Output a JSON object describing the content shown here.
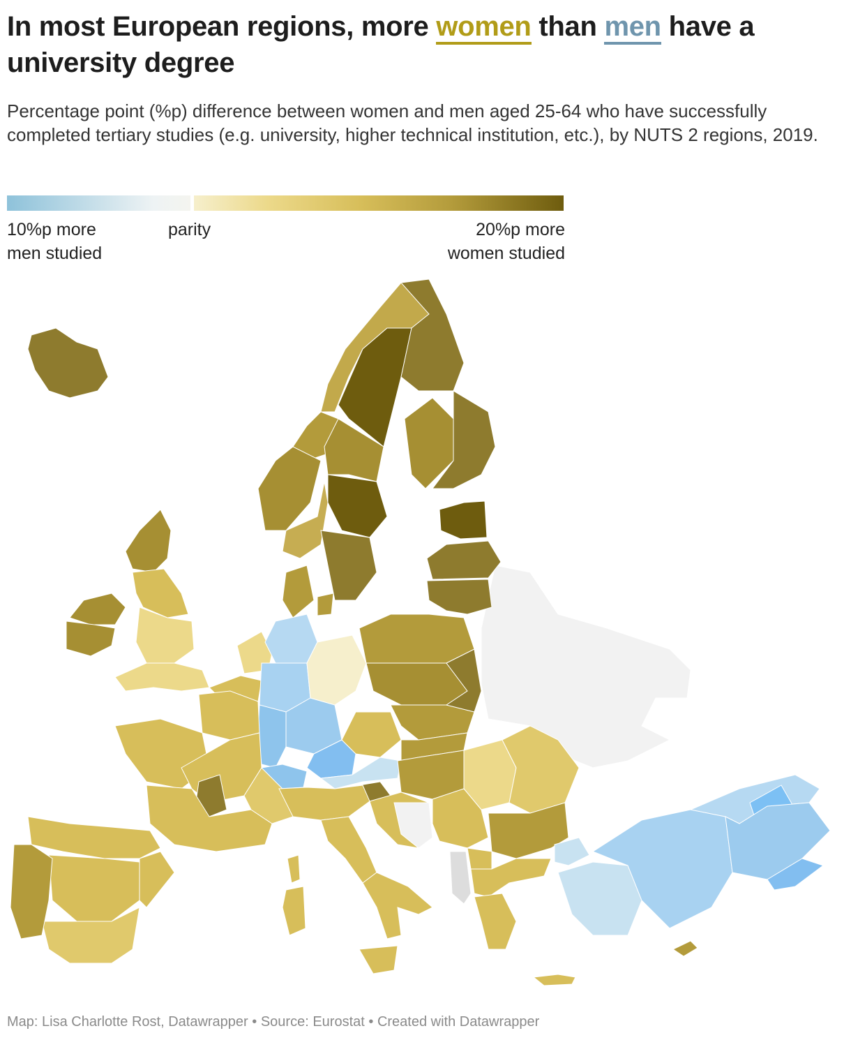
{
  "header": {
    "title_part1": "In most European regions, more ",
    "title_women": "women",
    "title_part2": " than ",
    "title_men": "men",
    "title_part3": " have a university degree",
    "subtitle": "Percentage point (%p) difference between women and men aged 25-64 who have successfully completed tertiary studies (e.g. university, higher technical institution, etc.), by NUTS 2 regions, 2019."
  },
  "legend": {
    "left_label_line1": "10%p more",
    "left_label_line2": "men studied",
    "mid_label": "parity",
    "right_label_line1": "20%p more",
    "right_label_line2": "women studied",
    "scale": {
      "min": -10,
      "max": 20,
      "men_color": "#8ec2da",
      "parity_color": "#f4f4ef",
      "women_color": "#6e5c0e"
    }
  },
  "colors": {
    "women_highlight": "#b19c18",
    "men_highlight": "#6f95ad",
    "no_data": "#f2f2f2"
  },
  "footer": {
    "map_credit": "Map: Lisa Charlotte Rost, Datawrapper",
    "separator": " • ",
    "source": "Source: Eurostat",
    "created": "Created with Datawrapper"
  }
}
